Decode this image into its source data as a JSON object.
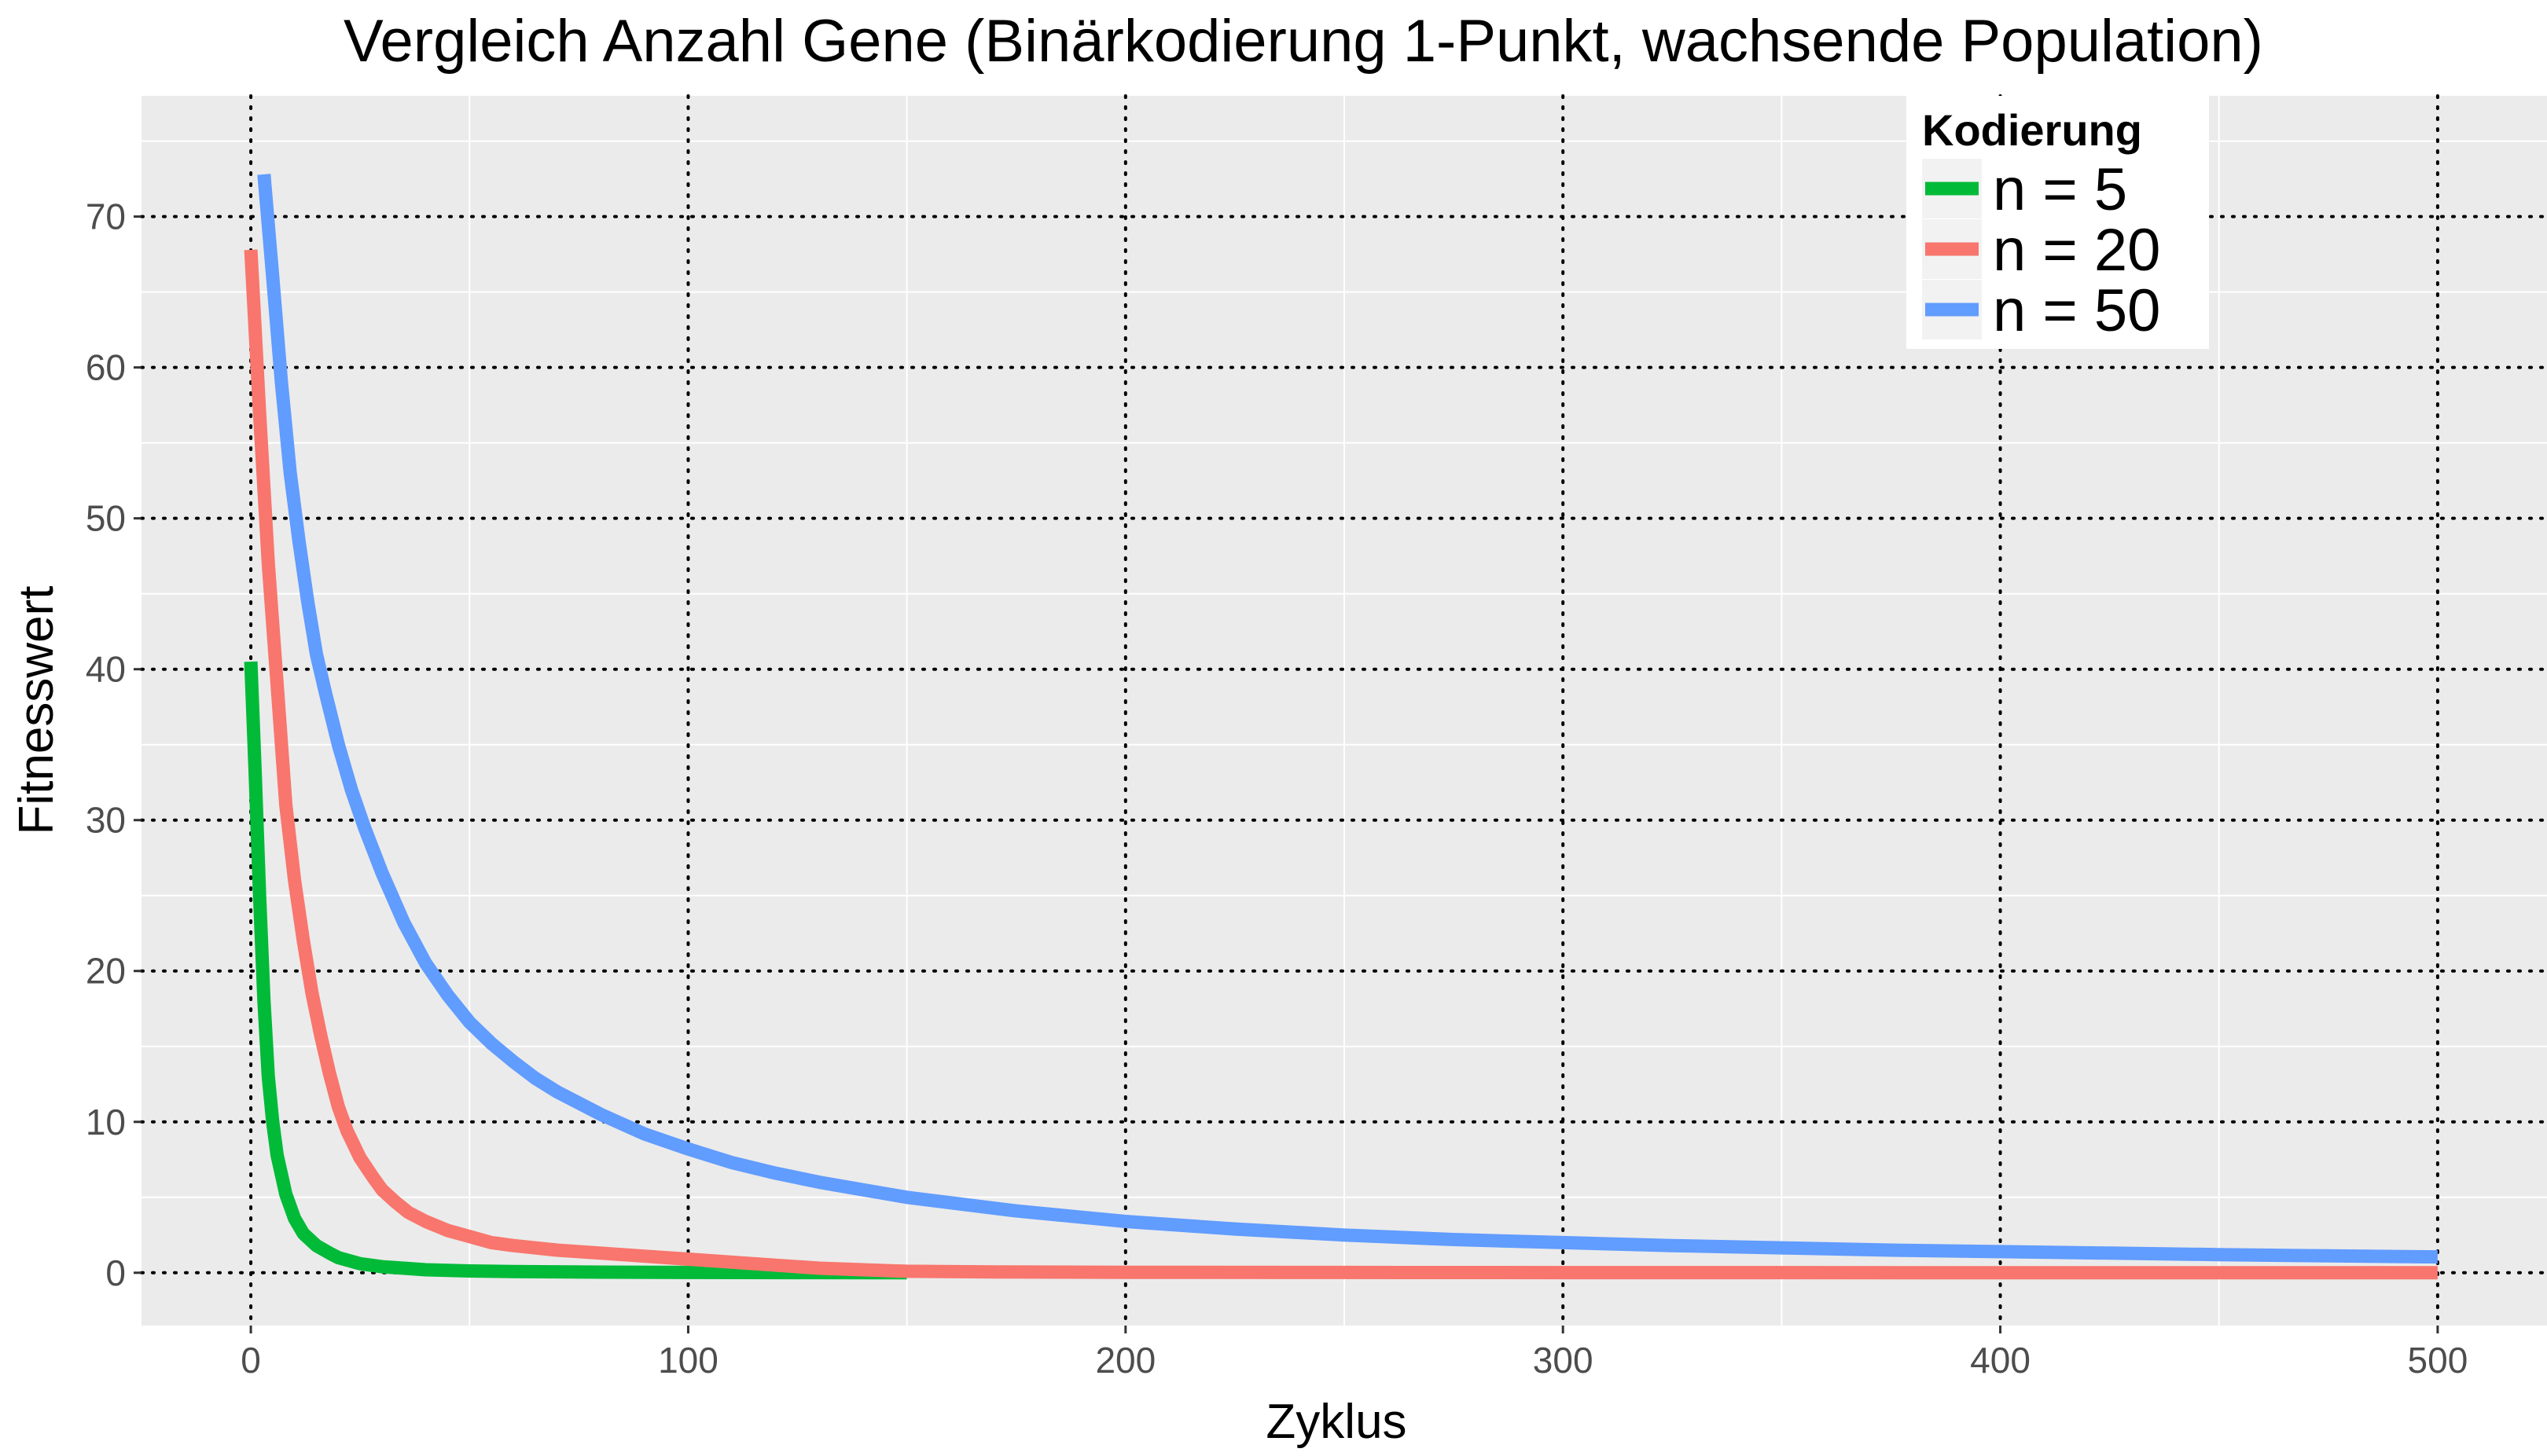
{
  "chart_data": {
    "type": "line",
    "title": "Vergleich Anzahl Gene (Binärkodierung 1-Punkt, wachsende Population)",
    "xlabel": "Zyklus",
    "ylabel": "Fitnesswert",
    "xlim": [
      -25,
      525
    ],
    "ylim": [
      -3.5,
      78
    ],
    "x_ticks": [
      0,
      100,
      200,
      300,
      400,
      500
    ],
    "y_ticks": [
      0,
      10,
      20,
      30,
      40,
      50,
      60,
      70
    ],
    "grid": true,
    "legend": {
      "title": "Kodierung",
      "placement": "top-right",
      "entries": [
        "n = 5",
        "n = 20",
        "n = 50"
      ]
    },
    "series": [
      {
        "name": "n = 5",
        "color": "#00ba38",
        "x": [
          0,
          1,
          2,
          3,
          4,
          5,
          6,
          8,
          10,
          12,
          15,
          18,
          20,
          25,
          30,
          35,
          40,
          50,
          60,
          80,
          100,
          130,
          150
        ],
        "y": [
          40.5,
          33,
          25,
          18,
          13,
          10,
          7.8,
          5.2,
          3.6,
          2.6,
          1.8,
          1.3,
          1.0,
          0.6,
          0.4,
          0.3,
          0.2,
          0.12,
          0.08,
          0.04,
          0.02,
          0.01,
          0.0
        ]
      },
      {
        "name": "n = 20",
        "color": "#f8766d",
        "x": [
          0,
          2,
          4,
          6,
          8,
          10,
          12,
          14,
          16,
          18,
          20,
          22,
          25,
          28,
          30,
          33,
          36,
          40,
          45,
          50,
          55,
          60,
          70,
          80,
          90,
          100,
          110,
          120,
          130,
          140,
          150,
          170,
          200,
          250,
          300,
          350,
          400,
          450,
          500
        ],
        "y": [
          67.8,
          57,
          47,
          39,
          31,
          26,
          22,
          18.5,
          15.7,
          13.2,
          11,
          9.4,
          7.6,
          6.3,
          5.5,
          4.7,
          4.0,
          3.4,
          2.8,
          2.4,
          2.0,
          1.8,
          1.5,
          1.3,
          1.1,
          0.9,
          0.7,
          0.5,
          0.3,
          0.2,
          0.1,
          0.05,
          0.03,
          0.02,
          0.01,
          0.01,
          0.0,
          0.0,
          0.0
        ]
      },
      {
        "name": "n = 50",
        "color": "#619cff",
        "x": [
          3,
          5,
          7,
          9,
          11,
          13,
          15,
          17,
          20,
          23,
          26,
          30,
          35,
          40,
          45,
          50,
          55,
          60,
          65,
          70,
          80,
          90,
          100,
          110,
          120,
          130,
          140,
          150,
          175,
          200,
          225,
          250,
          275,
          300,
          325,
          350,
          375,
          400,
          425,
          450,
          475,
          500
        ],
        "y": [
          72.8,
          66,
          59,
          53,
          48.5,
          44.5,
          41,
          38.5,
          35,
          32,
          29.5,
          26.5,
          23.2,
          20.5,
          18.4,
          16.6,
          15.2,
          14.0,
          12.9,
          12.0,
          10.5,
          9.2,
          8.2,
          7.3,
          6.6,
          6.0,
          5.5,
          5.0,
          4.1,
          3.4,
          2.9,
          2.5,
          2.2,
          2.0,
          1.8,
          1.65,
          1.5,
          1.4,
          1.3,
          1.2,
          1.12,
          1.05
        ]
      }
    ]
  }
}
